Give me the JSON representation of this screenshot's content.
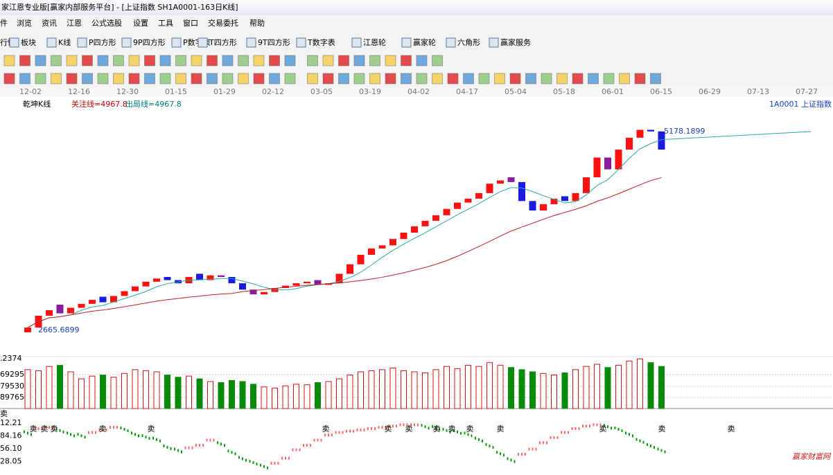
{
  "window": {
    "title": "家江恩专业版[赢家内部服务平台] - [上证指数  SH1A0001-163日K线]"
  },
  "menu": [
    "件",
    "浏览",
    "资讯",
    "江恩",
    "公式选股",
    "设置",
    "工具",
    "窗口",
    "交易委托",
    "帮助"
  ],
  "toolbar": [
    "行情",
    "板块",
    "K线",
    "P四方形",
    "9P四方形",
    "P数字表",
    "T四方形",
    "9T四方形",
    "T数字表",
    "江恩轮",
    "赢家轮",
    "六角形",
    "赢家服务"
  ],
  "dates": [
    "12-02",
    "12-16",
    "12-30",
    "01-15",
    "01-29",
    "02-12",
    "03-05",
    "03-19",
    "04-02",
    "04-17",
    "05-04",
    "05-18",
    "06-01",
    "06-15",
    "06-29",
    "07-13",
    "07-27"
  ],
  "kline": {
    "name": "乾坤K线",
    "focus": "关注线=4967.8",
    "exit": "出局线=4967.8",
    "symbol": "1A0001 上证指数",
    "ylim": [
      2333,
      5616
    ],
    "high_label": 5178.1899,
    "low_label": 2665.6899,
    "open": [
      2640,
      2700,
      2850,
      2990,
      2880,
      2950,
      3000,
      3090,
      3020,
      3100,
      3160,
      3220,
      3280,
      3340,
      3300,
      3260,
      3380,
      3300,
      3360,
      3340,
      3260,
      3180,
      3120,
      3150,
      3200,
      3230,
      3260,
      3300,
      3240,
      3260,
      3380,
      3500,
      3620,
      3700,
      3740,
      3820,
      3900,
      3980,
      4050,
      4120,
      4200,
      4280,
      4330,
      4400,
      4520,
      4600,
      4540,
      4300,
      4180,
      4260,
      4360,
      4300,
      4400,
      4600,
      4850,
      4700,
      4950,
      5100,
      5200,
      5180
    ],
    "close": [
      2700,
      2850,
      2920,
      2880,
      2950,
      3000,
      3050,
      3020,
      3100,
      3160,
      3220,
      3280,
      3320,
      3300,
      3260,
      3340,
      3300,
      3360,
      3340,
      3260,
      3180,
      3120,
      3150,
      3200,
      3230,
      3260,
      3280,
      3240,
      3260,
      3380,
      3500,
      3620,
      3700,
      3740,
      3820,
      3900,
      3980,
      4050,
      4120,
      4200,
      4280,
      4330,
      4400,
      4520,
      4560,
      4540,
      4300,
      4180,
      4260,
      4330,
      4300,
      4400,
      4600,
      4850,
      4700,
      4950,
      5100,
      5200,
      5180,
      4950
    ]
  },
  "volume": {
    "labels": [
      ".2374",
      "69295",
      "79530",
      "89765"
    ],
    "ylim": [
      0,
      100
    ],
    "values": [
      72,
      70,
      78,
      80,
      68,
      55,
      60,
      62,
      58,
      65,
      72,
      70,
      68,
      62,
      58,
      60,
      55,
      50,
      48,
      52,
      50,
      45,
      40,
      38,
      42,
      45,
      44,
      48,
      50,
      55,
      62,
      68,
      70,
      72,
      75,
      70,
      68,
      66,
      72,
      78,
      74,
      80,
      78,
      85,
      80,
      76,
      72,
      68,
      65,
      62,
      66,
      72,
      78,
      82,
      76,
      80,
      88,
      92,
      85,
      78
    ]
  },
  "indicator": {
    "title": "卖",
    "labels": [
      "12.21",
      "84.16",
      "56.10",
      "28.05"
    ],
    "ylim": [
      20,
      115
    ],
    "values": [
      82,
      88,
      90,
      86,
      80,
      78,
      82,
      86,
      90,
      88,
      80,
      76,
      72,
      60,
      55,
      58,
      62,
      70,
      65,
      52,
      42,
      36,
      30,
      34,
      42,
      55,
      62,
      70,
      78,
      82,
      84,
      86,
      88,
      90,
      92,
      94,
      94,
      92,
      90,
      86,
      84,
      80,
      72,
      62,
      50,
      40,
      48,
      56,
      66,
      74,
      82,
      88,
      92,
      94,
      92,
      88,
      80,
      70,
      62,
      55
    ],
    "sell_marks": [
      "卖",
      "卖",
      "卖",
      "卖",
      "卖",
      "卖",
      "卖",
      "卖",
      "卖",
      "卖",
      "卖",
      "卖",
      "卖",
      "卖",
      "卖"
    ]
  },
  "watermark": "赢家财富网"
}
